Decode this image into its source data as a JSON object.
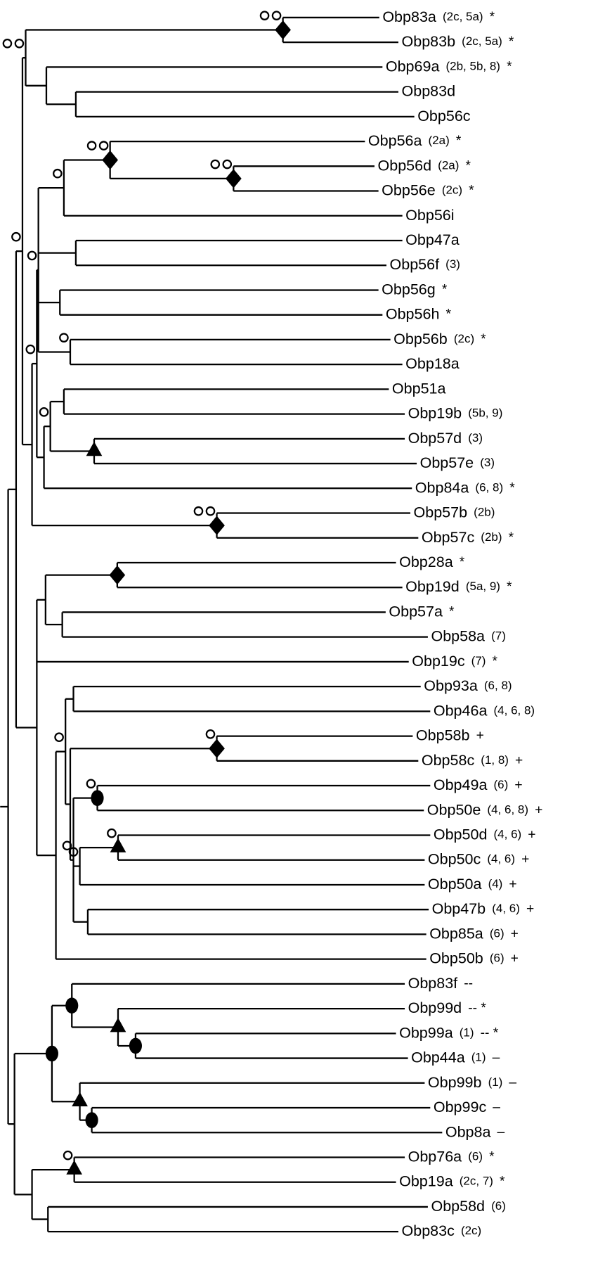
{
  "leaves": [
    {
      "name": "Obp83a",
      "note": "(2c, 5a)",
      "sign": "*"
    },
    {
      "name": "Obp83b",
      "note": "(2c, 5a)",
      "sign": "*"
    },
    {
      "name": "Obp69a",
      "note": "(2b, 5b, 8)",
      "sign": "*"
    },
    {
      "name": "Obp83d"
    },
    {
      "name": "Obp56c"
    },
    {
      "name": "Obp56a",
      "note": "(2a)",
      "sign": "*"
    },
    {
      "name": "Obp56d",
      "note": "(2a)",
      "sign": "*"
    },
    {
      "name": "Obp56e",
      "note": "(2c)",
      "sign": "*"
    },
    {
      "name": "Obp56i"
    },
    {
      "name": "Obp47a"
    },
    {
      "name": "Obp56f",
      "note": "(3)"
    },
    {
      "name": "Obp56g",
      "sign": "*"
    },
    {
      "name": "Obp56h",
      "sign": "*"
    },
    {
      "name": "Obp56b",
      "note": "(2c)",
      "sign": "*"
    },
    {
      "name": "Obp18a"
    },
    {
      "name": "Obp51a"
    },
    {
      "name": "Obp19b",
      "note": "(5b, 9)"
    },
    {
      "name": "Obp57d",
      "note": "(3)"
    },
    {
      "name": "Obp57e",
      "note": "(3)"
    },
    {
      "name": "Obp84a",
      "note": "(6, 8)",
      "sign": "*"
    },
    {
      "name": "Obp57b",
      "note": "(2b)"
    },
    {
      "name": "Obp57c",
      "note": "(2b)",
      "sign": "*"
    },
    {
      "name": "Obp28a",
      "sign": "*"
    },
    {
      "name": "Obp19d",
      "note": "(5a, 9)",
      "sign": "*"
    },
    {
      "name": "Obp57a",
      "sign": "*"
    },
    {
      "name": "Obp58a",
      "note": "(7)"
    },
    {
      "name": "Obp19c",
      "note": "(7)",
      "sign": "*"
    },
    {
      "name": "Obp93a",
      "note": "(6, 8)"
    },
    {
      "name": "Obp46a",
      "note": "(4, 6, 8)"
    },
    {
      "name": "Obp58b",
      "sign": "+"
    },
    {
      "name": "Obp58c",
      "note": "(1, 8)",
      "sign": "+"
    },
    {
      "name": "Obp49a",
      "note": "(6)",
      "sign": "+"
    },
    {
      "name": "Obp50e",
      "note": "(4, 6, 8)",
      "sign": "+"
    },
    {
      "name": "Obp50d",
      "note": "(4, 6)",
      "sign": "+"
    },
    {
      "name": "Obp50c",
      "note": "(4, 6)",
      "sign": "+"
    },
    {
      "name": "Obp50a",
      "note": "(4)",
      "sign": "+"
    },
    {
      "name": "Obp47b",
      "note": "(4, 6)",
      "sign": "+"
    },
    {
      "name": "Obp85a",
      "note": "(6)",
      "sign": "+"
    },
    {
      "name": "Obp50b",
      "note": "(6)",
      "sign": "+"
    },
    {
      "name": "Obp83f",
      "sign": "--"
    },
    {
      "name": "Obp99d",
      "sign": "-- *"
    },
    {
      "name": "Obp99a",
      "note": "(1)",
      "sign": "-- *"
    },
    {
      "name": "Obp44a",
      "note": "(1)",
      "sign": "–"
    },
    {
      "name": "Obp99b",
      "note": "(1)",
      "sign": "–"
    },
    {
      "name": "Obp99c",
      "sign": "–"
    },
    {
      "name": "Obp8a",
      "sign": "–"
    },
    {
      "name": "Obp76a",
      "note": "(6)",
      "sign": "*"
    },
    {
      "name": "Obp19a",
      "note": "(2c, 7)",
      "sign": "*"
    },
    {
      "name": "Obp58d",
      "note": "(6)"
    },
    {
      "name": "Obp83c",
      "note": "(2c)"
    }
  ]
}
